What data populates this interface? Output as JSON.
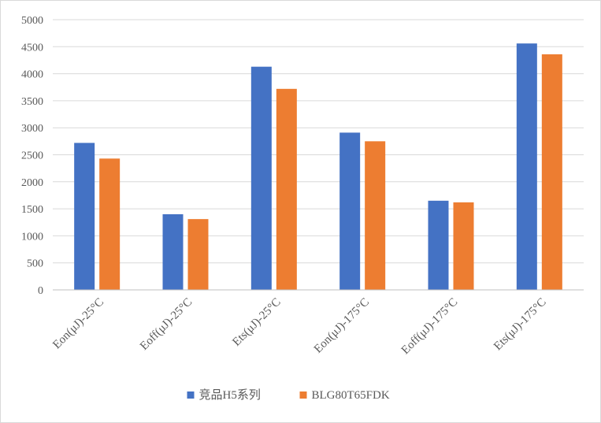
{
  "chart_data": {
    "type": "bar",
    "categories": [
      "Eon(μJ)-25°C",
      "Eoff(μJ)-25°C",
      "Ets(μJ)-25°C",
      "Eon(μJ)-175°C",
      "Eoff(μJ)-175°C",
      "Ets(μJ)-175°C"
    ],
    "series": [
      {
        "name": "竞品H5系列",
        "color": "#4472C4",
        "values": [
          2720,
          1400,
          4130,
          2910,
          1650,
          4560
        ]
      },
      {
        "name": "BLG80T65FDK",
        "color": "#ED7D31",
        "values": [
          2430,
          1310,
          3720,
          2750,
          1620,
          4360
        ]
      }
    ],
    "ylim": [
      0,
      5000
    ],
    "yticks": [
      0,
      500,
      1000,
      1500,
      2000,
      2500,
      3000,
      3500,
      4000,
      4500,
      5000
    ],
    "title": "",
    "xlabel": "",
    "ylabel": "",
    "grid": true,
    "legend_position": "bottom"
  }
}
